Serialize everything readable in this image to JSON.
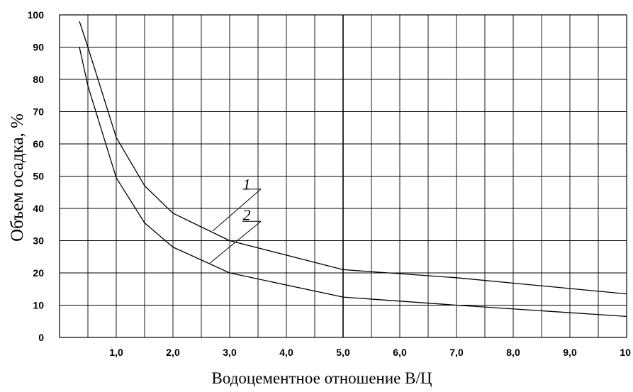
{
  "chart_data": {
    "type": "line",
    "xlabel": "Водоцементное отношение В/Ц",
    "ylabel": "Объем осадка, %",
    "xlim": [
      0,
      10
    ],
    "ylim": [
      0,
      100
    ],
    "grid": true,
    "x_ticks": [
      {
        "value": 1,
        "label": "1,0"
      },
      {
        "value": 2,
        "label": "2,0"
      },
      {
        "value": 3,
        "label": "3,0"
      },
      {
        "value": 4,
        "label": "4,0"
      },
      {
        "value": 5,
        "label": "5,0"
      },
      {
        "value": 6,
        "label": "6,0"
      },
      {
        "value": 7,
        "label": "7,0"
      },
      {
        "value": 8,
        "label": "8,0"
      },
      {
        "value": 9,
        "label": "9,0"
      },
      {
        "value": 10,
        "label": "10"
      }
    ],
    "y_ticks": [
      {
        "value": 0,
        "label": "0"
      },
      {
        "value": 10,
        "label": "10"
      },
      {
        "value": 20,
        "label": "20"
      },
      {
        "value": 30,
        "label": "30"
      },
      {
        "value": 40,
        "label": "40"
      },
      {
        "value": 50,
        "label": "50"
      },
      {
        "value": 60,
        "label": "60"
      },
      {
        "value": 70,
        "label": "70"
      },
      {
        "value": 80,
        "label": "80"
      },
      {
        "value": 90,
        "label": "90"
      },
      {
        "value": 100,
        "label": "100"
      }
    ],
    "series": [
      {
        "name": "1",
        "x": [
          0.35,
          0.5,
          1.0,
          1.5,
          2.0,
          3.0,
          5.0,
          7.0,
          10.0
        ],
        "y": [
          98,
          90,
          62,
          47,
          38.5,
          30,
          21,
          18.5,
          13.5
        ]
      },
      {
        "name": "2",
        "x": [
          0.35,
          0.5,
          1.0,
          1.5,
          2.0,
          3.0,
          5.0,
          7.0,
          10.0
        ],
        "y": [
          90,
          78,
          49.5,
          35.5,
          28,
          20,
          12.5,
          10,
          6.5
        ]
      }
    ],
    "annotations": [
      {
        "text": "1",
        "series": "1"
      },
      {
        "text": "2",
        "series": "2"
      }
    ]
  }
}
